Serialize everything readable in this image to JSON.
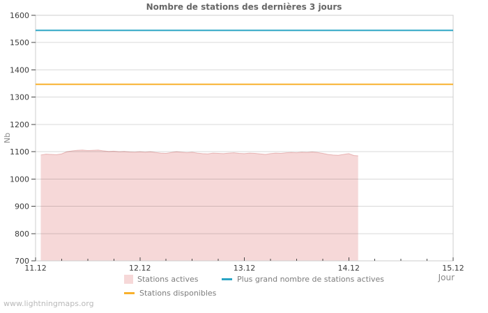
{
  "page": {
    "watermark": "www.lightningmaps.org"
  },
  "chart_data": {
    "type": "area",
    "title": "Nombre de stations des dernières 3 jours",
    "xlabel": "Jour",
    "ylabel": "Nb",
    "xlim": [
      0,
      4
    ],
    "ylim": [
      700,
      1600
    ],
    "y_tick_step": 100,
    "x_tick_labels": [
      "11.12",
      "12.12",
      "13.12",
      "14.12",
      "15.12"
    ],
    "x_tick_positions": [
      0,
      1,
      2,
      3,
      4
    ],
    "x_minor_tick_step": 0.25,
    "grid": true,
    "legend_position": "bottom",
    "colors": {
      "background": "#ffffff",
      "plot_border": "#cdcdcd",
      "gridline": "rgba(0,0,0,0.15)",
      "tick": "#444444",
      "tick_label": "#3b3b3b",
      "title": "#666666",
      "axis_title": "#888888",
      "legend_text": "#7c7c7c",
      "watermark": "#b9b9b9"
    },
    "series": [
      {
        "name": "Stations actives",
        "type": "area",
        "fill": "rgba(233,163,163,0.42)",
        "edge": "rgba(217,135,135,0.55)",
        "x": [
          0.05,
          0.1,
          0.15,
          0.2,
          0.25,
          0.3,
          0.35,
          0.4,
          0.45,
          0.5,
          0.55,
          0.6,
          0.65,
          0.7,
          0.75,
          0.8,
          0.85,
          0.9,
          0.95,
          1.0,
          1.05,
          1.1,
          1.15,
          1.2,
          1.25,
          1.3,
          1.35,
          1.4,
          1.45,
          1.5,
          1.55,
          1.6,
          1.65,
          1.7,
          1.75,
          1.8,
          1.85,
          1.9,
          1.95,
          2.0,
          2.05,
          2.1,
          2.15,
          2.2,
          2.25,
          2.3,
          2.35,
          2.4,
          2.45,
          2.5,
          2.55,
          2.6,
          2.65,
          2.7,
          2.75,
          2.8,
          2.85,
          2.9,
          2.95,
          3.0,
          3.05,
          3.09
        ],
        "y": [
          1088,
          1091,
          1090,
          1089,
          1092,
          1100,
          1103,
          1105,
          1106,
          1104,
          1105,
          1106,
          1103,
          1101,
          1102,
          1100,
          1101,
          1099,
          1098,
          1100,
          1098,
          1100,
          1097,
          1095,
          1094,
          1097,
          1100,
          1098,
          1096,
          1098,
          1095,
          1093,
          1092,
          1095,
          1094,
          1093,
          1095,
          1096,
          1094,
          1093,
          1095,
          1094,
          1092,
          1090,
          1093,
          1095,
          1094,
          1096,
          1097,
          1096,
          1098,
          1097,
          1099,
          1097,
          1094,
          1090,
          1088,
          1087,
          1090,
          1093,
          1086,
          1085
        ]
      },
      {
        "name": "Plus grand nombre de stations actives",
        "type": "hline",
        "color": "#2aa4c4",
        "value": 1545
      },
      {
        "name": "Stations disponibles",
        "type": "hline",
        "color": "#f8b02c",
        "value": 1347
      }
    ]
  }
}
